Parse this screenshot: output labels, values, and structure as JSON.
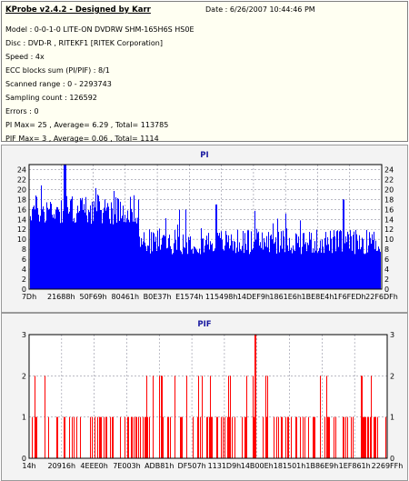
{
  "info": {
    "title": "KProbe v2.4.2 - Designed by Karr",
    "date": "Date : 6/26/2007 10:44:46 PM",
    "lines": [
      "Model : 0-0-1-0 LITE-ON DVDRW SHM-165H6S HS0E",
      "Disc : DVD-R , RITEKF1 [RITEK Corporation]",
      "Speed : 4x",
      "ECC blocks sum (PI/PIF) : 8/1",
      "Scanned range : 0 - 2293743",
      "Sampling count : 126592",
      "Errors : 0",
      "PI Max= 25 , Average= 6.29 , Total= 113785",
      "PIF Max= 3 , Average= 0.06 , Total= 1114"
    ]
  },
  "chart_data": [
    {
      "type": "bar",
      "title": "PI",
      "ylim": [
        0,
        25
      ],
      "yticks": [
        0,
        2,
        4,
        6,
        8,
        10,
        12,
        14,
        16,
        18,
        20,
        22,
        24
      ],
      "xticks": [
        "7Dh",
        "21688h",
        "50F69h",
        "80461h",
        "B0E37h",
        "E1574h",
        "115498h",
        "14DEF9h",
        "1861E6h",
        "1BE8E4h",
        "1F6FEDh",
        "22F6DFh"
      ],
      "grid": true,
      "color": "#0000ff",
      "series": [
        {
          "segment": "start",
          "baseline": 16,
          "range": [
            13,
            20
          ],
          "peak": 25
        },
        {
          "segment": "after B0E37h",
          "baseline": 10,
          "range": [
            7,
            13
          ],
          "peaks": [
            17,
            18
          ]
        }
      ],
      "max": 25,
      "average": 6.29
    },
    {
      "type": "bar",
      "title": "PIF",
      "ylim": [
        0,
        3
      ],
      "yticks": [
        0,
        1,
        2,
        3
      ],
      "xticks": [
        "14h",
        "20916h",
        "4EEE0h",
        "7E003h",
        "ADB81h",
        "DF507h",
        "1131D9h",
        "14B00Eh",
        "181501h",
        "1B86E9h",
        "1EF861h",
        "2269FFh"
      ],
      "grid": true,
      "color": "#ff0000",
      "max": 3,
      "average": 0.06
    }
  ]
}
